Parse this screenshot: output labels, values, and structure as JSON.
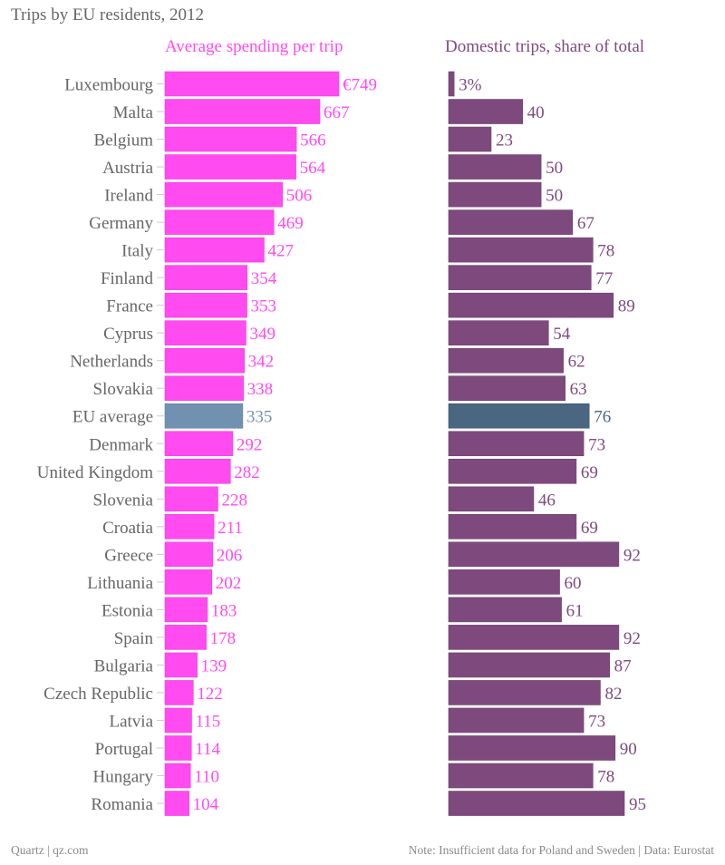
{
  "chart_title": "Trips by EU residents, 2012",
  "footer": {
    "source_left": "Quartz | qz.com",
    "note_right": "Note: Insufficient data for Poland and Sweden | Data: Eurostat"
  },
  "colors": {
    "spending_bar": "#ff4bf0",
    "spending_label": "#ff4bf0",
    "domestic_bar": "#7e4a7e",
    "domestic_label": "#7e4a7e",
    "eu_spending_bar": "#7191b1",
    "eu_spending_label": "#7191b1",
    "eu_domestic_bar": "#4a6680",
    "eu_domestic_label": "#4a6680",
    "category_label": "#666666"
  },
  "chart_data": [
    {
      "type": "bar",
      "orientation": "horizontal",
      "title": "Average spending per trip",
      "unit_prefix_first": "€",
      "xlabel": "",
      "ylabel": "",
      "xlim": [
        0,
        749
      ],
      "grid": false,
      "categories": [
        "Luxembourg",
        "Malta",
        "Belgium",
        "Austria",
        "Ireland",
        "Germany",
        "Italy",
        "Finland",
        "France",
        "Cyprus",
        "Netherlands",
        "Slovakia",
        "EU average",
        "Denmark",
        "United Kingdom",
        "Slovenia",
        "Croatia",
        "Greece",
        "Lithuania",
        "Estonia",
        "Spain",
        "Bulgaria",
        "Czech Republic",
        "Latvia",
        "Portugal",
        "Hungary",
        "Romania"
      ],
      "values": [
        749,
        667,
        566,
        564,
        506,
        469,
        427,
        354,
        353,
        349,
        342,
        338,
        335,
        292,
        282,
        228,
        211,
        206,
        202,
        183,
        178,
        139,
        122,
        115,
        114,
        110,
        104
      ],
      "value_labels": [
        "€749",
        "667",
        "566",
        "564",
        "506",
        "469",
        "427",
        "354",
        "353",
        "349",
        "342",
        "338",
        "335",
        "292",
        "282",
        "228",
        "211",
        "206",
        "202",
        "183",
        "178",
        "139",
        "122",
        "115",
        "114",
        "110",
        "104"
      ],
      "highlight_category": "EU average"
    },
    {
      "type": "bar",
      "orientation": "horizontal",
      "title": "Domestic trips, share of total",
      "unit_suffix_first": "%",
      "xlabel": "",
      "ylabel": "",
      "xlim": [
        0,
        100
      ],
      "grid": false,
      "categories": [
        "Luxembourg",
        "Malta",
        "Belgium",
        "Austria",
        "Ireland",
        "Germany",
        "Italy",
        "Finland",
        "France",
        "Cyprus",
        "Netherlands",
        "Slovakia",
        "EU average",
        "Denmark",
        "United Kingdom",
        "Slovenia",
        "Croatia",
        "Greece",
        "Lithuania",
        "Estonia",
        "Spain",
        "Bulgaria",
        "Czech Republic",
        "Latvia",
        "Portugal",
        "Hungary",
        "Romania"
      ],
      "values": [
        3,
        40,
        23,
        50,
        50,
        67,
        78,
        77,
        89,
        54,
        62,
        63,
        76,
        73,
        69,
        46,
        69,
        92,
        60,
        61,
        92,
        87,
        82,
        73,
        90,
        78,
        95
      ],
      "value_labels": [
        "3%",
        "40",
        "23",
        "50",
        "50",
        "67",
        "78",
        "77",
        "89",
        "54",
        "62",
        "63",
        "76",
        "73",
        "69",
        "46",
        "69",
        "92",
        "60",
        "61",
        "92",
        "87",
        "82",
        "73",
        "90",
        "78",
        "95"
      ],
      "highlight_category": "EU average"
    }
  ]
}
